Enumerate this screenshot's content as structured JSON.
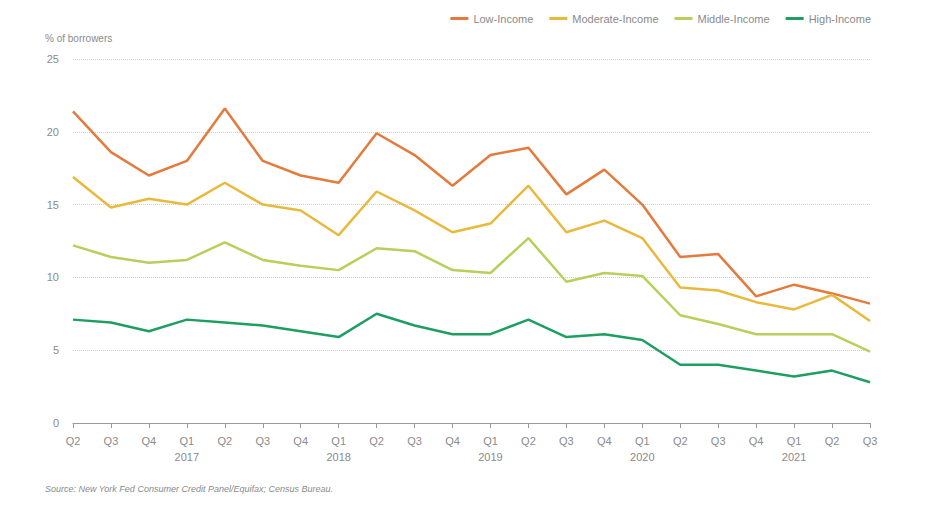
{
  "chart_data": {
    "type": "line",
    "y_label": "% of borrowers",
    "source": "Source: New York Fed Consumer Credit Panel/Equifax; Census Bureau.",
    "categories": [
      "Q2",
      "Q3",
      "Q4",
      "Q1\n2017",
      "Q2",
      "Q3",
      "Q4",
      "Q1\n2018",
      "Q2",
      "Q3",
      "Q4",
      "Q1\n2019",
      "Q2",
      "Q3",
      "Q4",
      "Q1\n2020",
      "Q2",
      "Q3",
      "Q4",
      "Q1\n2021",
      "Q2",
      "Q3"
    ],
    "series": [
      {
        "name": "Low-Income",
        "color": "#e47a3c",
        "values": [
          21.4,
          18.6,
          17.0,
          18.0,
          21.6,
          18.0,
          17.0,
          16.5,
          19.9,
          18.4,
          16.3,
          18.4,
          18.9,
          15.7,
          17.4,
          15.0,
          11.4,
          11.6,
          8.7,
          9.5,
          8.9,
          8.2
        ]
      },
      {
        "name": "Moderate-Income",
        "color": "#e9b93c",
        "values": [
          16.9,
          14.8,
          15.4,
          15.0,
          16.5,
          15.0,
          14.6,
          12.9,
          15.9,
          14.6,
          13.1,
          13.7,
          16.3,
          13.1,
          13.9,
          12.7,
          9.3,
          9.1,
          8.3,
          7.8,
          8.8,
          7.0
        ]
      },
      {
        "name": "Middle-Income",
        "color": "#b6d05a",
        "values": [
          12.2,
          11.4,
          11.0,
          11.2,
          12.4,
          11.2,
          10.8,
          10.5,
          12.0,
          11.8,
          10.5,
          10.3,
          12.7,
          9.7,
          10.3,
          10.1,
          7.4,
          6.8,
          6.1,
          6.1,
          6.1,
          4.9
        ]
      },
      {
        "name": "High-Income",
        "color": "#1f9e62",
        "values": [
          7.1,
          6.9,
          6.3,
          7.1,
          6.9,
          6.7,
          6.3,
          5.9,
          7.5,
          6.7,
          6.1,
          6.1,
          7.1,
          5.9,
          6.1,
          5.7,
          4.0,
          4.0,
          3.6,
          3.2,
          3.6,
          2.8
        ]
      }
    ],
    "ylim": [
      0,
      25
    ],
    "yticks": [
      0,
      5,
      10,
      15,
      20,
      25
    ],
    "grid": true,
    "legend": "top-right"
  }
}
